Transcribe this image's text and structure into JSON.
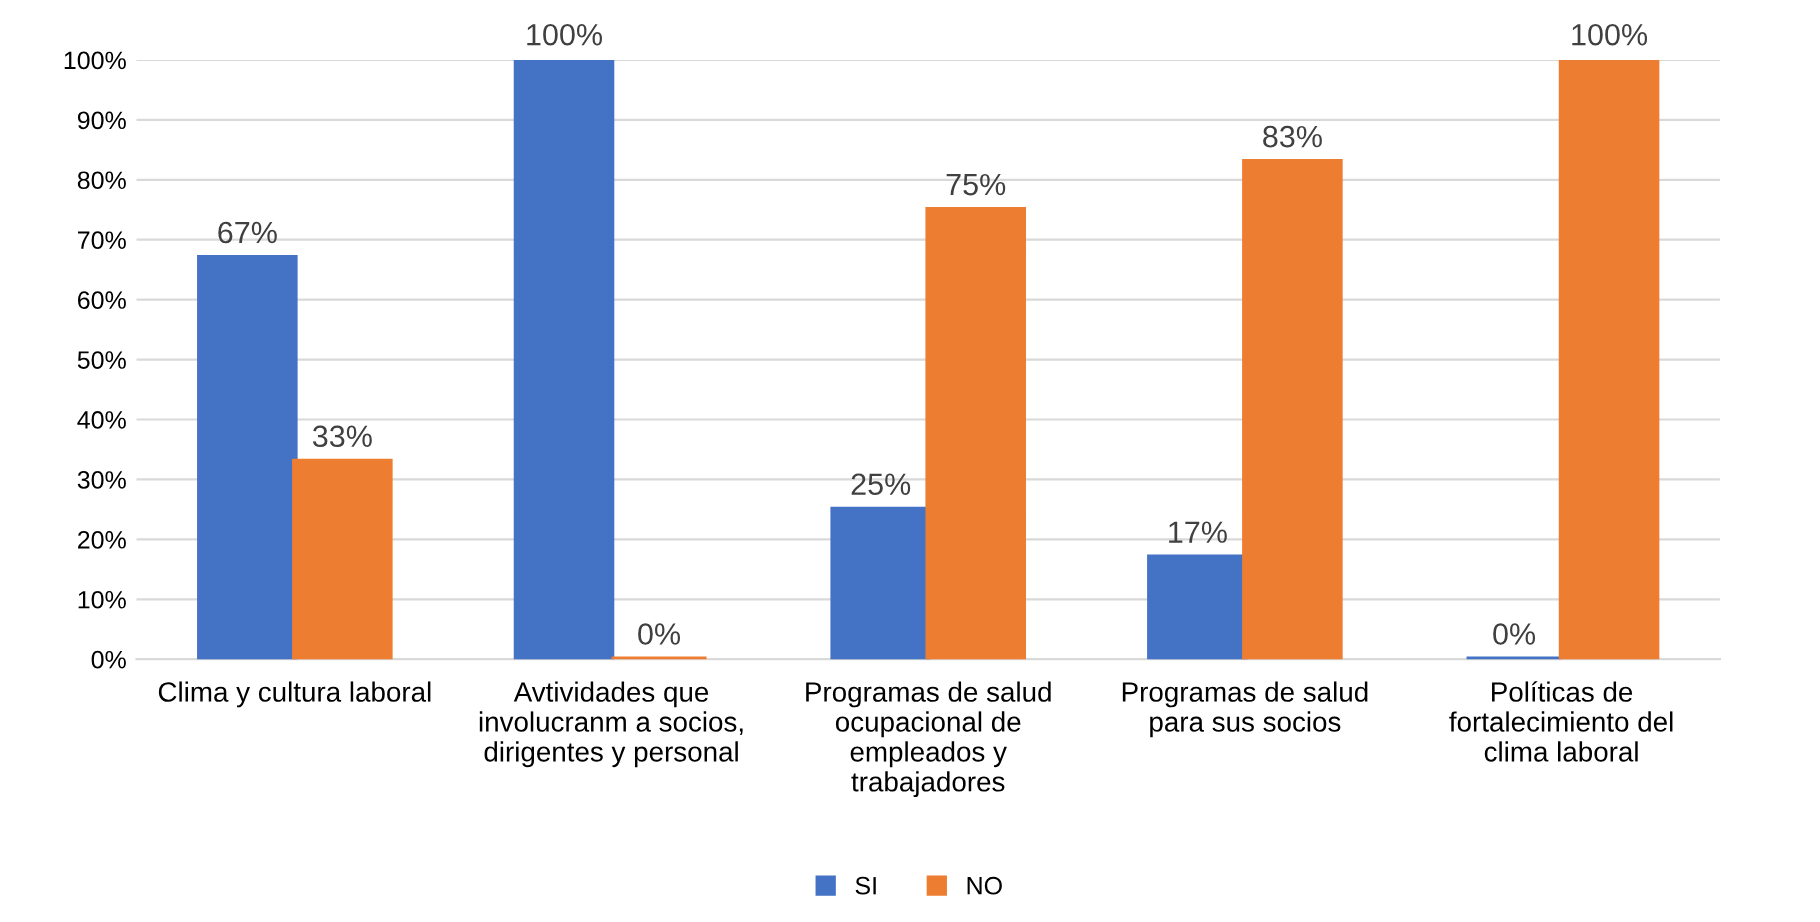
{
  "chart_data": {
    "type": "bar",
    "categories": [
      "Clima y cultura laboral",
      "Avtividades que\ninvolucranm a socios,\ndirigentes y personal",
      "Programas de salud\nocupacional de\nempleados y\ntrabajadores",
      "Programas de salud\npara sus socios",
      "Políticas de\nfortalecimiento del\nclima laboral"
    ],
    "series": [
      {
        "name": "SI",
        "color": "#4472c4",
        "values": [
          67,
          100,
          25,
          17,
          0
        ],
        "value_labels": [
          "67%",
          "100%",
          "25%",
          "17%",
          "0%"
        ]
      },
      {
        "name": "NO",
        "color": "#ed7d31",
        "values": [
          33,
          0,
          75,
          83,
          100
        ],
        "value_labels": [
          "33%",
          "0%",
          "75%",
          "83%",
          "100%"
        ]
      }
    ],
    "ylim": [
      0,
      100
    ],
    "yticks": [
      {
        "value": 0,
        "label": "0%"
      },
      {
        "value": 10,
        "label": "10%"
      },
      {
        "value": 20,
        "label": "20%"
      },
      {
        "value": 30,
        "label": "30%"
      },
      {
        "value": 40,
        "label": "40%"
      },
      {
        "value": 50,
        "label": "50%"
      },
      {
        "value": 60,
        "label": "60%"
      },
      {
        "value": 70,
        "label": "70%"
      },
      {
        "value": 80,
        "label": "80%"
      },
      {
        "value": 90,
        "label": "90%"
      },
      {
        "value": 100,
        "label": "100%"
      }
    ],
    "grid": "y",
    "legend": "bottom"
  }
}
